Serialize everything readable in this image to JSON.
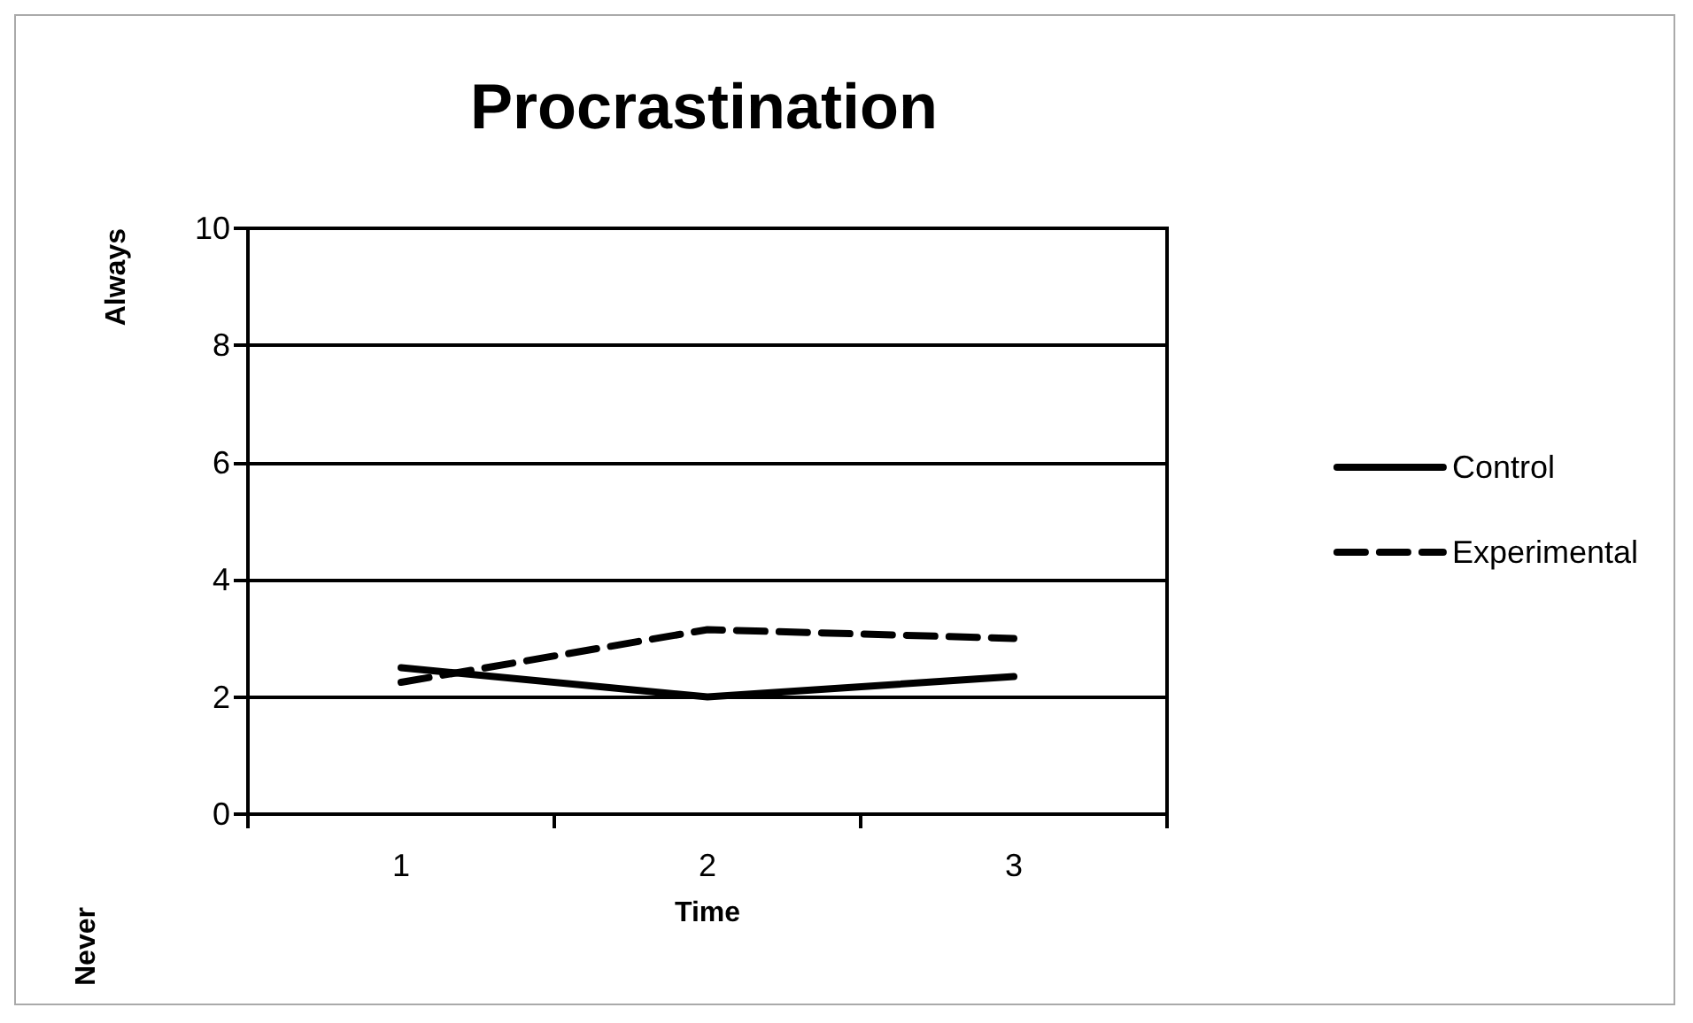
{
  "chart_data": {
    "type": "line",
    "title": "Procrastination",
    "xlabel": "Time",
    "ylabel": "Always",
    "annotations": [
      "Never"
    ],
    "categories": [
      "1",
      "2",
      "3"
    ],
    "series": [
      {
        "name": "Control",
        "color": "#000000",
        "line_style": "solid",
        "values": [
          2.5,
          2.0,
          2.35
        ]
      },
      {
        "name": "Experimental",
        "color": "#000000",
        "line_style": "dashed",
        "values": [
          2.25,
          3.15,
          3.0
        ]
      }
    ],
    "ylim": [
      0,
      10
    ],
    "yticks": [
      0,
      2,
      4,
      6,
      8,
      10
    ],
    "grid": "y",
    "legend": "right",
    "marker": "none"
  }
}
